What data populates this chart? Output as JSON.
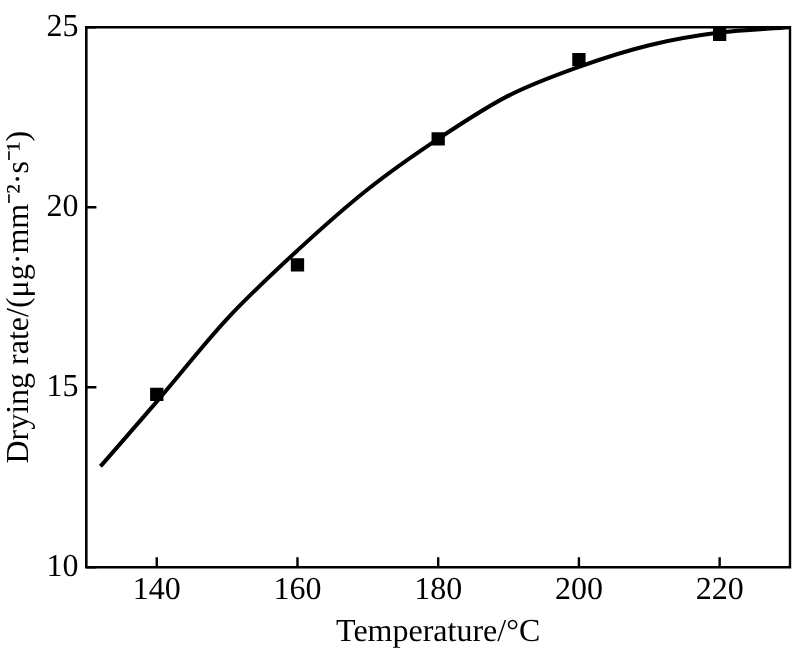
{
  "chart_data": {
    "type": "scatter",
    "xlabel": "Temperature/°C",
    "ylabel": "Drying rate/(μg·mm⁻²·s⁻¹)",
    "xlim": [
      130,
      230
    ],
    "xticks": [
      140,
      160,
      180,
      200,
      220
    ],
    "ylim": [
      10,
      25
    ],
    "yticks": [
      10,
      15,
      20,
      25
    ],
    "grid": false,
    "legend": false,
    "series": [
      {
        "marker": "square",
        "color": "#000000",
        "x": [
          140,
          160,
          180,
          200,
          220
        ],
        "values": [
          14.8,
          18.4,
          21.9,
          24.1,
          24.8
        ]
      },
      {
        "type": "line",
        "marker": "none",
        "line_style": "solid",
        "color": "#000000",
        "x": [
          132,
          140,
          150,
          160,
          170,
          180,
          190,
          200,
          210,
          220,
          230
        ],
        "values": [
          12.8,
          14.6,
          16.9,
          18.8,
          20.5,
          21.9,
          23.1,
          23.9,
          24.5,
          24.85,
          25.0
        ]
      }
    ]
  }
}
